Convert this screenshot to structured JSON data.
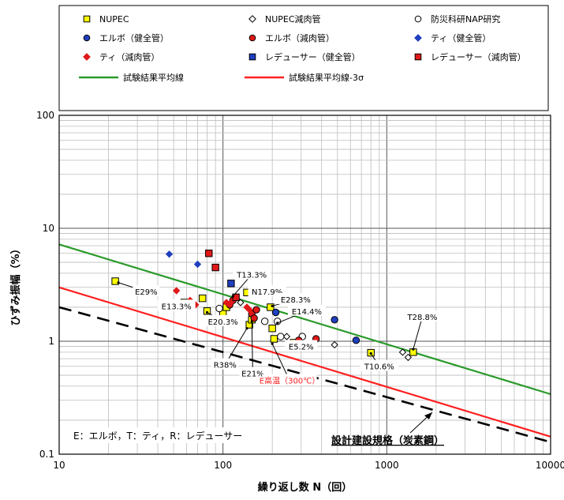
{
  "chart_data": {
    "type": "scatter",
    "x_scale": "log",
    "y_scale": "log",
    "xlim": [
      10,
      10000
    ],
    "ylim": [
      0.1,
      100
    ],
    "grid": true,
    "legend_position": "top",
    "xlabel": "繰り返し数 N（回）",
    "ylabel": "ひずみ振幅（%）",
    "x_ticks": [
      "10",
      "100",
      "1000",
      "10000"
    ],
    "y_ticks": [
      "0.1",
      "1",
      "10",
      "100"
    ],
    "legend": [
      {
        "label": "NUPEC",
        "marker": "square",
        "fill": "#ffff00"
      },
      {
        "label": "NUPEC減肉管",
        "marker": "diamond",
        "fill": "#ffffff"
      },
      {
        "label": "防災科研NAP研究",
        "marker": "circle",
        "fill": "#ffffff"
      },
      {
        "label": "エルボ（健全管）",
        "marker": "circle",
        "fill": "#1f3fbf"
      },
      {
        "label": "エルボ（減肉管）",
        "marker": "circle",
        "fill": "#e01818"
      },
      {
        "label": "ティ（健全管）",
        "marker": "diamond",
        "fill": "#1f3fbf"
      },
      {
        "label": "ティ（減肉管）",
        "marker": "diamond",
        "fill": "#e01818"
      },
      {
        "label": "レデューサー（健全管）",
        "marker": "square",
        "fill": "#1f3fbf"
      },
      {
        "label": "レデューサー（減肉管）",
        "marker": "square",
        "fill": "#e01818"
      },
      {
        "label": "試験結果平均線",
        "marker": "line",
        "fill": "#2a9a2a"
      },
      {
        "label": "試験結果平均線-3σ",
        "marker": "line",
        "fill": "#ff2020"
      }
    ],
    "lines": [
      {
        "name": "試験結果平均線",
        "color": "#2a9a2a",
        "style": "solid",
        "points": [
          [
            10,
            7.2
          ],
          [
            10000,
            0.34
          ]
        ]
      },
      {
        "name": "試験結果平均線-3σ",
        "color": "#ff2020",
        "style": "solid",
        "points": [
          [
            10,
            3.0
          ],
          [
            10000,
            0.143
          ]
        ]
      },
      {
        "name": "設計建設規格（炭素鋼）",
        "color": "#000000",
        "style": "dashed",
        "points": [
          [
            10,
            2.0
          ],
          [
            10000,
            0.128
          ]
        ]
      }
    ],
    "series": [
      {
        "name": "NUPEC",
        "marker": "square",
        "fill": "#ffff00",
        "x": [
          22,
          58,
          75,
          80,
          100,
          105,
          140,
          145,
          150,
          195,
          200,
          205,
          270,
          800,
          1450
        ],
        "y": [
          3.4,
          2.2,
          2.4,
          1.85,
          1.8,
          2.0,
          2.7,
          1.4,
          1.55,
          2.0,
          1.3,
          1.05,
          0.97,
          0.79,
          0.8
        ]
      },
      {
        "name": "NUPEC減肉管",
        "marker": "diamond",
        "fill": "#ffffff",
        "x": [
          115,
          128,
          245,
          480,
          1250,
          1350
        ],
        "y": [
          2.3,
          2.2,
          1.1,
          0.93,
          0.8,
          0.72
        ]
      },
      {
        "name": "防災科研NAP研究",
        "marker": "circle",
        "fill": "#ffffff",
        "x": [
          95,
          180,
          215,
          225,
          305
        ],
        "y": [
          1.95,
          1.5,
          1.5,
          1.1,
          1.1
        ]
      },
      {
        "name": "エルボ（健全管）",
        "marker": "circle",
        "fill": "#1f3fbf",
        "x": [
          210,
          480,
          650
        ],
        "y": [
          1.8,
          1.55,
          1.02
        ]
      },
      {
        "name": "エルボ（減肉管）",
        "marker": "circle",
        "fill": "#e01818",
        "x": [
          110,
          115,
          150,
          155,
          160,
          290,
          370
        ],
        "y": [
          2.1,
          2.3,
          1.75,
          1.6,
          1.9,
          1.02,
          1.05
        ]
      },
      {
        "name": "ティ（健全管）",
        "marker": "diamond",
        "fill": "#1f3fbf",
        "x": [
          47,
          70
        ],
        "y": [
          5.9,
          4.8
        ]
      },
      {
        "name": "ティ（減肉管）",
        "marker": "diamond",
        "fill": "#e01818",
        "x": [
          52,
          63,
          68,
          105,
          110,
          140,
          145
        ],
        "y": [
          2.8,
          2.3,
          2.1,
          2.2,
          2.15,
          2.0,
          1.9
        ]
      },
      {
        "name": "レデューサー（健全管）",
        "marker": "square",
        "fill": "#1f3fbf",
        "x": [
          112
        ],
        "y": [
          3.25
        ]
      },
      {
        "name": "レデューサー（減肉管）",
        "marker": "square",
        "fill": "#e01818",
        "x": [
          82,
          90,
          120
        ],
        "y": [
          6.0,
          4.5,
          2.45
        ]
      }
    ],
    "annotations": [
      {
        "text": "E29%",
        "color": "#000000",
        "x": 34,
        "y": 2.75,
        "point": [
          23,
          3.3
        ]
      },
      {
        "text": "E13.3%",
        "color": "#000000",
        "x": 52,
        "y": 2.05,
        "point": [
          60,
          2.2
        ]
      },
      {
        "text": "E20.3%",
        "color": "#000000",
        "x": 100,
        "y": 1.5,
        "point": [
          80,
          1.8
        ]
      },
      {
        "text": "T13.3%",
        "color": "#000000",
        "x": 150,
        "y": 3.9,
        "point": [
          115,
          2.5
        ]
      },
      {
        "text": "N17.9%",
        "color": "#000000",
        "x": 186,
        "y": 2.75,
        "point": [
          148,
          2.7
        ]
      },
      {
        "text": "E28.3%",
        "color": "#000000",
        "x": 278,
        "y": 2.35,
        "point": [
          200,
          2.05
        ]
      },
      {
        "text": "E14.4%",
        "color": "#000000",
        "x": 325,
        "y": 1.85,
        "point": [
          215,
          1.45
        ]
      },
      {
        "text": "E5.2%",
        "color": "#000000",
        "x": 300,
        "y": 0.9,
        "point": [
          260,
          1.0
        ]
      },
      {
        "text": "T10.6%",
        "color": "#000000",
        "x": 900,
        "y": 0.6,
        "point": [
          800,
          0.78
        ]
      },
      {
        "text": "T28.8%",
        "color": "#000000",
        "x": 1650,
        "y": 1.65,
        "point": [
          1450,
          0.85
        ]
      },
      {
        "text": "R38%",
        "color": "#000000",
        "x": 103,
        "y": 0.62,
        "point": [
          140,
          1.3
        ]
      },
      {
        "text": "E21%",
        "color": "#000000",
        "x": 152,
        "y": 0.52,
        "point": [
          150,
          1.5
        ]
      },
      {
        "text": "E高温（300℃）",
        "color": "#ff2020",
        "x": 255,
        "y": 0.45,
        "point": [
          200,
          0.95
        ]
      }
    ],
    "note": "E：エルボ，T：ティ，R：レデューサー",
    "design_curve_label": "設計建設規格（炭素鋼）"
  }
}
